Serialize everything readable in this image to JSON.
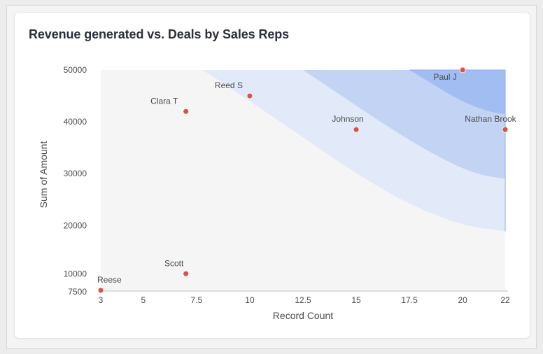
{
  "card": {
    "title": "Revenue generated vs. Deals by Sales Reps"
  },
  "chart_data": {
    "type": "scatter",
    "title": "Revenue generated vs. Deals by Sales Reps",
    "xlabel": "Record Count",
    "ylabel": "Sum of Amount",
    "xlim": [
      3,
      22
    ],
    "ylim": [
      7500,
      50000
    ],
    "xticks": [
      3,
      5,
      7.5,
      10,
      12.5,
      15,
      17.5,
      20,
      22
    ],
    "yticks": [
      7500,
      10000,
      20000,
      30000,
      40000,
      50000
    ],
    "points": [
      {
        "name": "Reese",
        "x": 3,
        "y": 7500
      },
      {
        "name": "Scott",
        "x": 7,
        "y": 10700
      },
      {
        "name": "Clara T",
        "x": 7,
        "y": 42000
      },
      {
        "name": "Reed S",
        "x": 10,
        "y": 45000
      },
      {
        "name": "Johnson",
        "x": 15,
        "y": 38500
      },
      {
        "name": "Paul J",
        "x": 20,
        "y": 50000
      },
      {
        "name": "Nathan Brook",
        "x": 22,
        "y": 38500
      }
    ],
    "point_color": "#d9534a",
    "bands": [
      {
        "color": "#e2e9f8",
        "boundary": [
          [
            7.8,
            50000
          ],
          [
            10,
            44000
          ],
          [
            12.5,
            37000
          ],
          [
            15,
            30000
          ],
          [
            17.5,
            24000
          ],
          [
            20,
            20000
          ],
          [
            22,
            18900
          ]
        ]
      },
      {
        "color": "#c3d3f3",
        "boundary": [
          [
            12.5,
            50000
          ],
          [
            14.5,
            44500
          ],
          [
            16.5,
            39000
          ],
          [
            18.5,
            34000
          ],
          [
            20.5,
            30000
          ],
          [
            22,
            29000
          ]
        ]
      },
      {
        "color": "#a2bdf1",
        "boundary": [
          [
            17.5,
            50000
          ],
          [
            18.5,
            47500
          ],
          [
            19.5,
            45000
          ],
          [
            20.5,
            43000
          ],
          [
            21.5,
            41700
          ],
          [
            22,
            41500
          ]
        ]
      }
    ],
    "plot_background": "#f5f5f5"
  }
}
